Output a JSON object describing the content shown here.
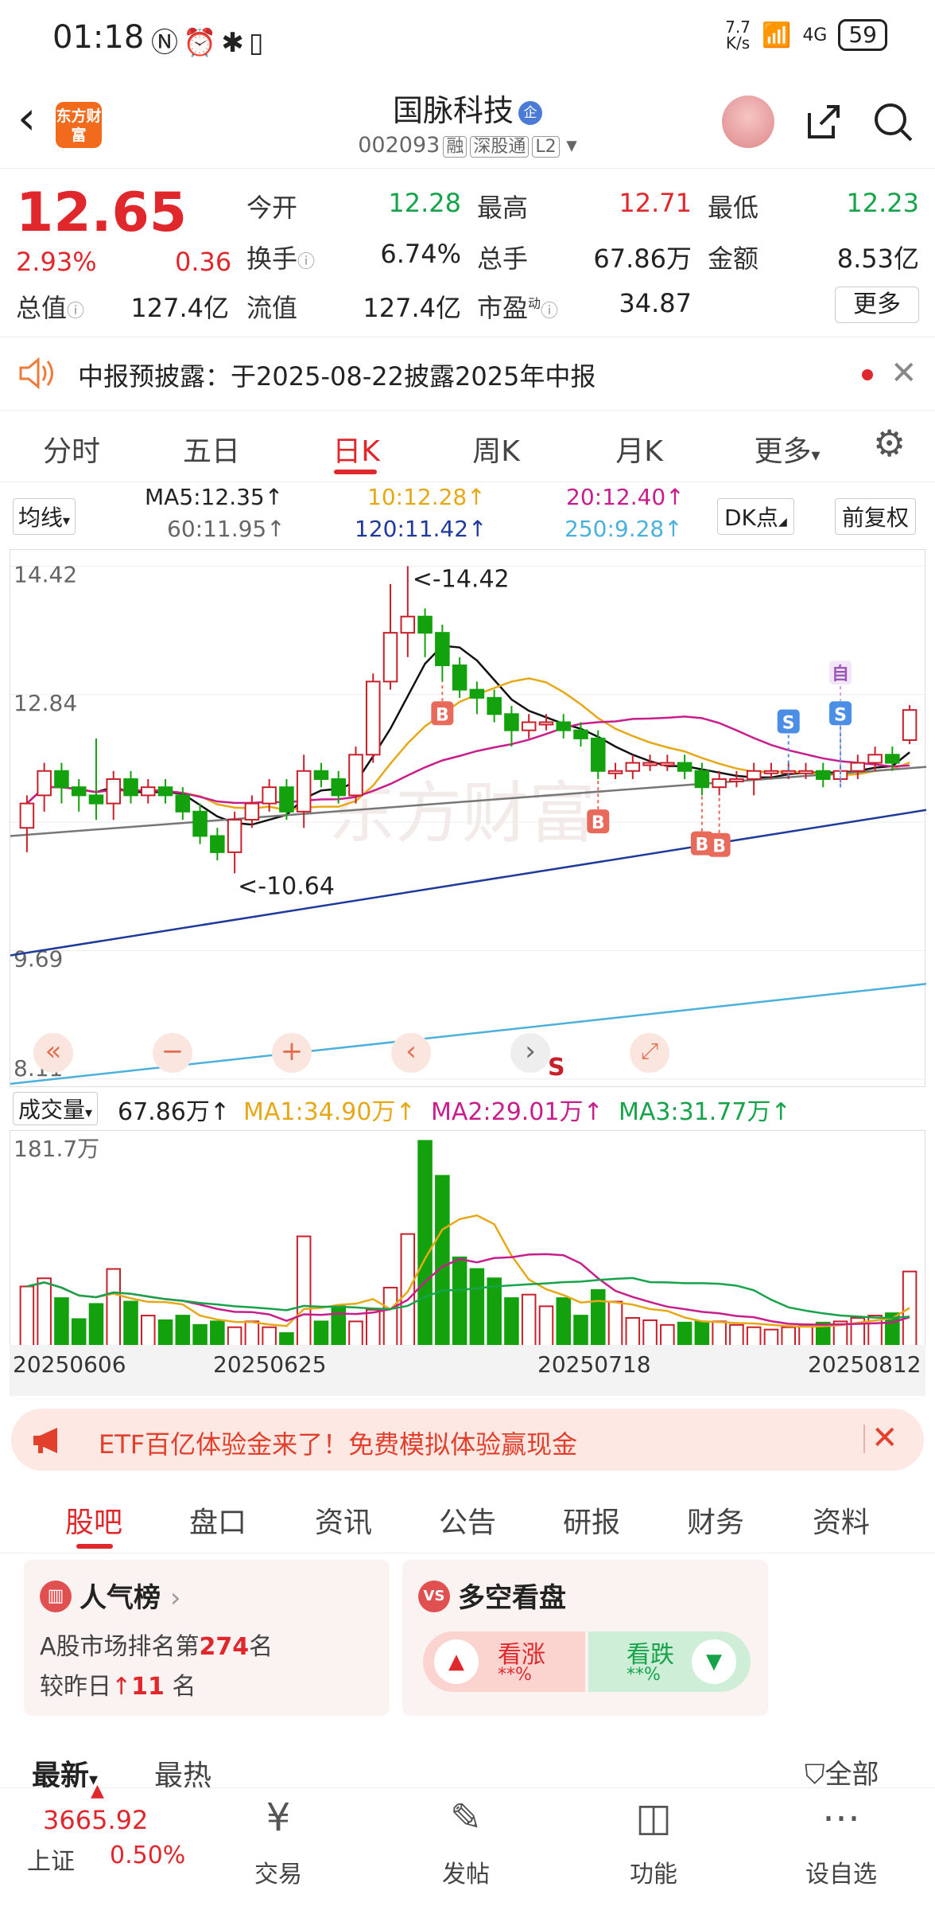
{
  "status": {
    "time": "01:18",
    "speed_top": "7.7",
    "speed_bottom": "K/s",
    "battery": "59",
    "network": "4G"
  },
  "header": {
    "logo": "东方财富",
    "title": "国脉科技",
    "title_badge": "企",
    "code": "002093",
    "tag1": "融",
    "tag2": "深股通",
    "tag3": "L2"
  },
  "quote": {
    "price": "12.65",
    "change_pct": "2.93%",
    "change_abs": "0.36",
    "rows": [
      [
        {
          "label": "今开",
          "value": "12.28",
          "color": "#16a34a"
        },
        {
          "label": "最高",
          "value": "12.71",
          "color": "#e0282c"
        },
        {
          "label": "最低",
          "value": "12.23",
          "color": "#16a34a"
        }
      ],
      [
        {
          "label": "换手",
          "value": "6.74%",
          "color": "#222"
        },
        {
          "label": "总手",
          "value": "67.86万",
          "color": "#222"
        },
        {
          "label": "金额",
          "value": "8.53亿",
          "color": "#222"
        }
      ],
      [
        {
          "label": "流值",
          "value": "127.4亿",
          "color": "#222"
        },
        {
          "label": "市盈",
          "value": "34.87",
          "color": "#222"
        }
      ]
    ],
    "total_value_label": "总值",
    "total_value": "127.4亿",
    "pe_superscript": "动",
    "more": "更多"
  },
  "notice": {
    "text": "中报预披露：于2025-08-22披露2025年中报"
  },
  "tabs": [
    "分时",
    "五日",
    "日K",
    "周K",
    "月K",
    "更多"
  ],
  "ma": {
    "selector": "均线",
    "ma5": "MA5:12.35↑",
    "ma10": "10:12.28↑",
    "ma20": "20:12.40↑",
    "ma60": "60:11.95↑",
    "ma120": "120:11.42↑",
    "ma250": "250:9.28↑",
    "dk": "DK点",
    "fq": "前复权"
  },
  "chart_data": {
    "type": "candlestick",
    "y_ticks": [
      "14.42",
      "12.84",
      "9.69",
      "8.11"
    ],
    "high_label": "<-14.42",
    "low_label": "<-10.64",
    "markers": [
      "B",
      "B",
      "B",
      "B",
      "S",
      "S",
      "自",
      "S"
    ],
    "candles": [
      [
        11.2,
        11.5,
        10.9,
        11.6
      ],
      [
        11.6,
        11.9,
        11.4,
        12.0
      ],
      [
        11.9,
        11.7,
        11.5,
        12.0
      ],
      [
        11.7,
        11.6,
        11.4,
        11.8
      ],
      [
        11.6,
        11.5,
        11.3,
        12.3
      ],
      [
        11.5,
        11.8,
        11.3,
        11.9
      ],
      [
        11.8,
        11.6,
        11.5,
        11.9
      ],
      [
        11.6,
        11.7,
        11.5,
        11.8
      ],
      [
        11.7,
        11.6,
        11.5,
        11.8
      ],
      [
        11.6,
        11.4,
        11.3,
        11.7
      ],
      [
        11.4,
        11.1,
        11.0,
        11.5
      ],
      [
        11.1,
        10.9,
        10.8,
        11.2
      ],
      [
        10.9,
        11.3,
        10.64,
        11.4
      ],
      [
        11.3,
        11.5,
        11.2,
        11.6
      ],
      [
        11.5,
        11.7,
        11.4,
        11.8
      ],
      [
        11.7,
        11.4,
        11.3,
        11.8
      ],
      [
        11.4,
        11.9,
        11.2,
        12.1
      ],
      [
        11.9,
        11.8,
        11.7,
        12.0
      ],
      [
        11.8,
        11.6,
        11.5,
        11.9
      ],
      [
        11.6,
        12.1,
        11.5,
        12.2
      ],
      [
        12.1,
        13.0,
        12.0,
        13.1
      ],
      [
        13.0,
        13.6,
        12.9,
        14.2
      ],
      [
        13.6,
        13.8,
        13.3,
        14.42
      ],
      [
        13.8,
        13.6,
        13.3,
        13.9
      ],
      [
        13.6,
        13.2,
        13.0,
        13.7
      ],
      [
        13.2,
        12.9,
        12.8,
        13.3
      ],
      [
        12.9,
        12.8,
        12.6,
        13.0
      ],
      [
        12.8,
        12.6,
        12.5,
        12.9
      ],
      [
        12.6,
        12.4,
        12.2,
        12.7
      ],
      [
        12.4,
        12.5,
        12.3,
        12.6
      ],
      [
        12.5,
        12.5,
        12.4,
        12.6
      ],
      [
        12.5,
        12.4,
        12.3,
        12.6
      ],
      [
        12.4,
        12.3,
        12.2,
        12.5
      ],
      [
        12.3,
        11.9,
        11.8,
        12.4
      ],
      [
        11.9,
        11.9,
        11.8,
        12.0
      ],
      [
        11.9,
        12.0,
        11.8,
        12.1
      ],
      [
        12.0,
        12.0,
        11.9,
        12.1
      ],
      [
        12.0,
        12.0,
        11.9,
        12.1
      ],
      [
        12.0,
        11.9,
        11.8,
        12.1
      ],
      [
        11.9,
        11.7,
        11.6,
        12.0
      ],
      [
        11.7,
        11.8,
        11.6,
        11.9
      ],
      [
        11.8,
        11.8,
        11.7,
        11.9
      ],
      [
        11.8,
        11.9,
        11.6,
        12.0
      ],
      [
        11.9,
        11.9,
        11.8,
        12.0
      ],
      [
        11.9,
        11.9,
        11.8,
        12.0
      ],
      [
        11.9,
        11.9,
        11.8,
        12.0
      ],
      [
        11.9,
        11.8,
        11.7,
        12.0
      ],
      [
        11.8,
        11.9,
        11.7,
        12.0
      ],
      [
        11.9,
        12.0,
        11.8,
        12.1
      ],
      [
        12.0,
        12.1,
        11.9,
        12.2
      ],
      [
        12.1,
        12.0,
        11.9,
        12.2
      ],
      [
        12.28,
        12.65,
        12.23,
        12.71
      ]
    ],
    "volume_label": "成交量",
    "volume_value": "67.86万↑",
    "vol_ma1": "MA1:34.90万↑",
    "vol_ma2": "MA2:29.01万↑",
    "vol_ma3": "MA3:31.77万↑",
    "volume_max": "181.7万",
    "dates": [
      "20250606",
      "20250625",
      "20250718",
      "20250812"
    ]
  },
  "banner": {
    "text": "ETF百亿体验金来了！免费模拟体验赢现金"
  },
  "subtabs": [
    "股吧",
    "盘口",
    "资讯",
    "公告",
    "研报",
    "财务",
    "资料"
  ],
  "cards": {
    "left_title": "人气榜",
    "rank_text": "A股市场排名第",
    "rank": "274",
    "rank_unit": "名",
    "compare_text": "较昨日",
    "compare_value": "11",
    "compare_unit": "名",
    "right_title": "多空看盘",
    "up_label": "看涨",
    "up_pct": "**%",
    "down_label": "看跌",
    "down_pct": "**%"
  },
  "feed": {
    "latest": "最新",
    "hot": "最热",
    "all": "全部"
  },
  "bottom": {
    "index_value": "3665.92",
    "index_name": "上证",
    "index_pct": "0.50%",
    "nav": [
      "交易",
      "发帖",
      "功能",
      "设自选"
    ]
  }
}
